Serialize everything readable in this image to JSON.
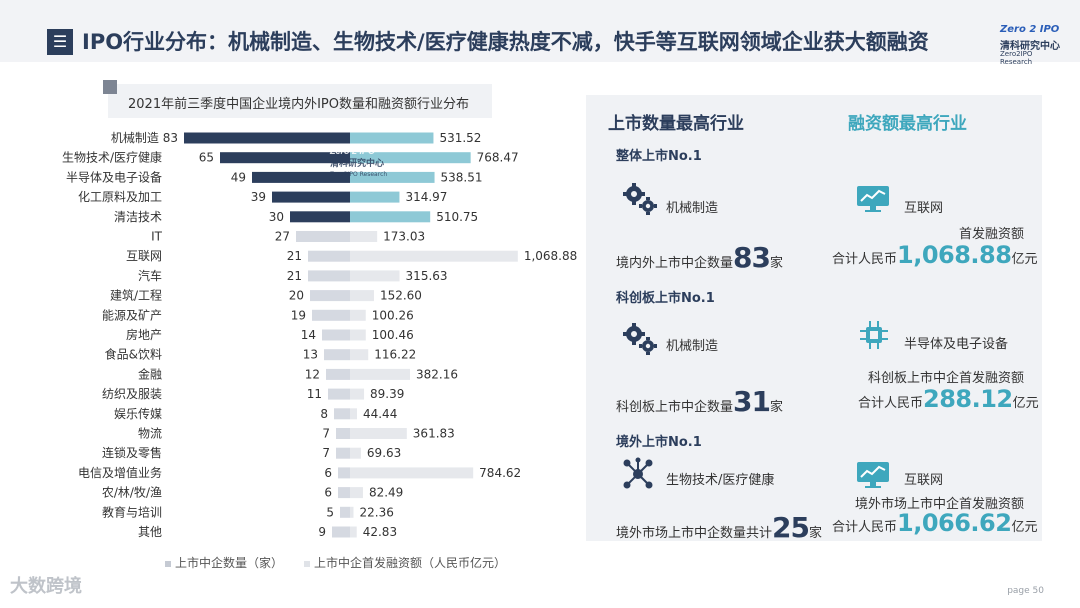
{
  "header": {
    "icon": "menu-icon",
    "title": "IPO行业分布：机械制造、生物技术/医疗健康热度不减，快手等互联网领域企业获大额融资",
    "logo_top": "Zero 2 IPO",
    "logo_name": "清科研究中心",
    "logo_sub": "Zero2IPO Research"
  },
  "chart_title": "2021年前三季度中国企业境内外IPO数量和融资额行业分布",
  "chart_data": {
    "type": "bar",
    "title": "2021年前三季度中国企业境内外IPO数量和融资额行业分布",
    "categories": [
      "机械制造",
      "生物技术/医疗健康",
      "半导体及电子设备",
      "化工原料及加工",
      "清洁技术",
      "IT",
      "互联网",
      "汽车",
      "建筑/工程",
      "能源及矿产",
      "房地产",
      "食品&饮料",
      "金融",
      "纺织及服装",
      "娱乐传媒",
      "物流",
      "连锁及零售",
      "电信及增值业务",
      "农/林/牧/渔",
      "教育与培训",
      "其他"
    ],
    "series": [
      {
        "name": "上市中企数量（家）",
        "values": [
          83,
          65,
          49,
          39,
          30,
          27,
          21,
          21,
          20,
          19,
          14,
          13,
          12,
          11,
          8,
          7,
          7,
          6,
          6,
          5,
          9
        ]
      },
      {
        "name": "上市中企首发融资额（人民币亿元）",
        "values": [
          531.52,
          768.47,
          538.51,
          314.97,
          510.75,
          173.03,
          1068.88,
          315.63,
          152.6,
          100.26,
          100.46,
          116.22,
          382.16,
          89.39,
          44.44,
          361.83,
          69.63,
          784.62,
          82.49,
          22.36,
          42.83
        ]
      }
    ],
    "value_labels": {
      "count": [
        "83",
        "65",
        "49",
        "39",
        "30",
        "27",
        "21",
        "21",
        "20",
        "19",
        "14",
        "13",
        "12",
        "11",
        "8",
        "7",
        "7",
        "6",
        "6",
        "5",
        "9"
      ],
      "amount": [
        "531.52",
        "768.47",
        "538.51",
        "314.97",
        "510.75",
        "173.03",
        "1,068.88",
        "315.63",
        "152.60",
        "100.26",
        "100.46",
        "116.22",
        "382.16",
        "89.39",
        "44.44",
        "361.83",
        "69.63",
        "784.62",
        "82.49",
        "22.36",
        "42.83"
      ]
    },
    "highlighted_top_n": 5,
    "colors": {
      "count_top": "#2c3e5c",
      "count_rest": "#d5d9e1",
      "amount_top": "#8ec9d6",
      "amount_rest": "#e6e8ec"
    },
    "watermark": {
      "logo_top": "Zero 2 IPO",
      "logo_name": "清科研究中心",
      "logo_sub": "Zero2IPO Research"
    }
  },
  "legend": {
    "count": "上市中企数量（家）",
    "amount": "上市中企首发融资额（人民币亿元）"
  },
  "right_panel": {
    "head_count": "上市数量最高行业",
    "head_amount": "融资额最高行业",
    "sections": [
      {
        "title": "整体上市No.1",
        "count_industry": "机械制造",
        "count_icon": "gears-icon",
        "count_prefix": "境内外上市中企数量",
        "count_value": "83",
        "count_suffix": "家",
        "amount_industry": "互联网",
        "amount_icon": "monitor-chart-icon",
        "amount_desc": "首发融资额",
        "amount_prefix": "合计人民币",
        "amount_value": "1,068.88",
        "amount_suffix": "亿元"
      },
      {
        "title": "科创板上市No.1",
        "count_industry": "机械制造",
        "count_icon": "gears-icon",
        "count_prefix": "科创板上市中企数量",
        "count_value": "31",
        "count_suffix": "家",
        "amount_industry": "半导体及电子设备",
        "amount_icon": "chip-icon",
        "amount_desc": "科创板上市中企首发融资额",
        "amount_prefix": "合计人民币",
        "amount_value": "288.12",
        "amount_suffix": "亿元"
      },
      {
        "title": "境外上市No.1",
        "count_industry": "生物技术/医疗健康",
        "count_icon": "molecule-icon",
        "count_prefix": "境外市场上市中企数量共计",
        "count_value": "25",
        "count_suffix": "家",
        "amount_industry": "互联网",
        "amount_icon": "monitor-chart-icon",
        "amount_desc": "境外市场上市中企首发融资额",
        "amount_prefix": "合计人民币",
        "amount_value": "1,066.62",
        "amount_suffix": "亿元"
      }
    ]
  },
  "footer": {
    "brand": "大数跨境",
    "page": "page  50"
  }
}
